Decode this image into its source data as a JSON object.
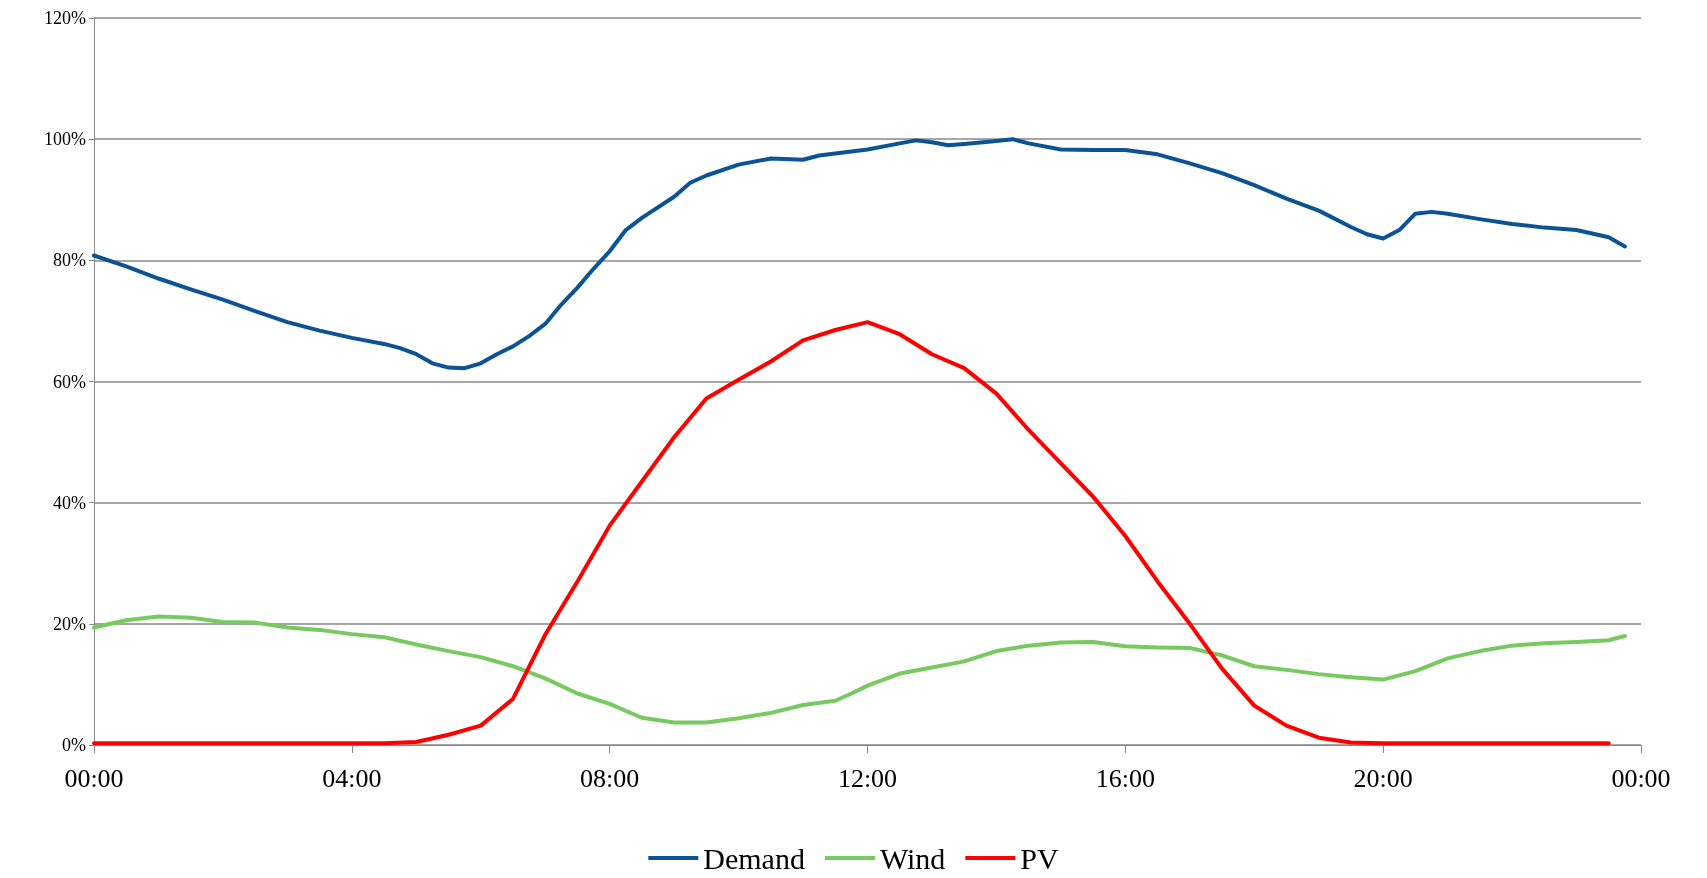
{
  "chart_data": {
    "type": "line",
    "xlim": [
      0,
      24
    ],
    "ylim": [
      0,
      120
    ],
    "xticks": [
      {
        "value": 0,
        "label": "00:00"
      },
      {
        "value": 4,
        "label": "04:00"
      },
      {
        "value": 8,
        "label": "08:00"
      },
      {
        "value": 12,
        "label": "12:00"
      },
      {
        "value": 16,
        "label": "16:00"
      },
      {
        "value": 20,
        "label": "20:00"
      },
      {
        "value": 24,
        "label": "00:00"
      }
    ],
    "yticks": [
      {
        "value": 0,
        "label": "0%"
      },
      {
        "value": 20,
        "label": "20%"
      },
      {
        "value": 40,
        "label": "40%"
      },
      {
        "value": 60,
        "label": "60%"
      },
      {
        "value": 80,
        "label": "80%"
      },
      {
        "value": 100,
        "label": "100%"
      },
      {
        "value": 120,
        "label": "120%"
      }
    ],
    "grid": "y",
    "legend": "bottom",
    "marker": "none",
    "line_style": "solid",
    "series": [
      {
        "name": "Demand",
        "color": "#0b5394",
        "x": [
          0,
          0.5,
          1,
          1.5,
          2,
          2.5,
          3,
          3.5,
          4,
          4.5,
          4.75,
          5,
          5.25,
          5.5,
          5.75,
          6,
          6.25,
          6.5,
          6.75,
          7,
          7.25,
          7.5,
          7.75,
          8,
          8.25,
          8.5,
          9,
          9.25,
          9.5,
          10,
          10.5,
          11,
          11.25,
          12,
          12.5,
          12.75,
          13,
          13.25,
          13.5,
          14,
          14.25,
          14.5,
          15,
          15.5,
          16,
          16.5,
          17,
          17.5,
          18,
          18.5,
          19,
          19.5,
          19.75,
          20,
          20.25,
          20.5,
          20.75,
          21,
          21.5,
          22,
          22.5,
          23,
          23.5,
          23.75
        ],
        "values": [
          80.8,
          79,
          77,
          75.2,
          73.5,
          71.6,
          69.8,
          68.4,
          67.2,
          66.2,
          65.5,
          64.5,
          63,
          62.3,
          62.2,
          63,
          64.5,
          65.8,
          67.5,
          69.5,
          72.7,
          75.5,
          78.6,
          81.5,
          85,
          87,
          90.5,
          92.8,
          94,
          95.8,
          96.8,
          96.6,
          97.3,
          98.3,
          99.3,
          99.8,
          99.5,
          99,
          99.2,
          99.7,
          100,
          99.3,
          98.3,
          98.2,
          98.2,
          97.5,
          96,
          94.4,
          92.4,
          90.2,
          88.2,
          85.5,
          84.3,
          83.6,
          85,
          87.7,
          88,
          87.7,
          86.8,
          86,
          85.4,
          85,
          83.8,
          82.3
        ]
      },
      {
        "name": "Wind",
        "color": "#77c960",
        "x": [
          0,
          0.5,
          1,
          1.5,
          2,
          2.5,
          3,
          3.5,
          4,
          4.5,
          5,
          5.5,
          6,
          6.5,
          7,
          7.5,
          8,
          8.5,
          9,
          9.5,
          10,
          10.5,
          11,
          11.5,
          11.75,
          12,
          12.5,
          13,
          13.5,
          14,
          14.5,
          15,
          15.5,
          16,
          16.5,
          17,
          17.5,
          18,
          18.5,
          19,
          19.5,
          20,
          20.5,
          21,
          21.5,
          22,
          22.5,
          23,
          23.5,
          23.75
        ],
        "values": [
          19.4,
          20.6,
          21.2,
          21,
          20.3,
          20.2,
          19.4,
          19,
          18.3,
          17.8,
          16.6,
          15.5,
          14.5,
          13,
          11,
          8.5,
          6.8,
          4.5,
          3.7,
          3.7,
          4.4,
          5.3,
          6.6,
          7.3,
          8.5,
          9.8,
          11.8,
          12.8,
          13.8,
          15.5,
          16.4,
          16.9,
          17,
          16.3,
          16.1,
          16,
          14.8,
          13,
          12.4,
          11.7,
          11.2,
          10.8,
          12.2,
          14.3,
          15.5,
          16.4,
          16.8,
          17,
          17.3,
          18
        ]
      },
      {
        "name": "PV",
        "color": "#ff0000",
        "x": [
          0,
          1,
          2,
          3,
          4,
          4.5,
          5,
          5.5,
          6,
          6.5,
          7,
          7.5,
          8,
          8.5,
          9,
          9.5,
          10,
          10.5,
          11,
          11.5,
          12,
          12.5,
          13,
          13.5,
          14,
          14.5,
          15,
          15.5,
          16,
          16.5,
          17,
          17.5,
          18,
          18.5,
          19,
          19.5,
          20,
          21,
          22,
          23,
          23.5
        ],
        "values": [
          0.3,
          0.3,
          0.3,
          0.3,
          0.3,
          0.3,
          0.5,
          1.7,
          3.2,
          7.6,
          18.2,
          27,
          36.2,
          43.5,
          50.8,
          57.2,
          60.3,
          63.3,
          66.8,
          68.5,
          69.8,
          67.8,
          64.5,
          62.2,
          58,
          52,
          46.5,
          41,
          34.5,
          27,
          20,
          12.6,
          6.5,
          3.2,
          1.2,
          0.4,
          0.3,
          0.3,
          0.3,
          0.3,
          0.3
        ]
      }
    ]
  }
}
